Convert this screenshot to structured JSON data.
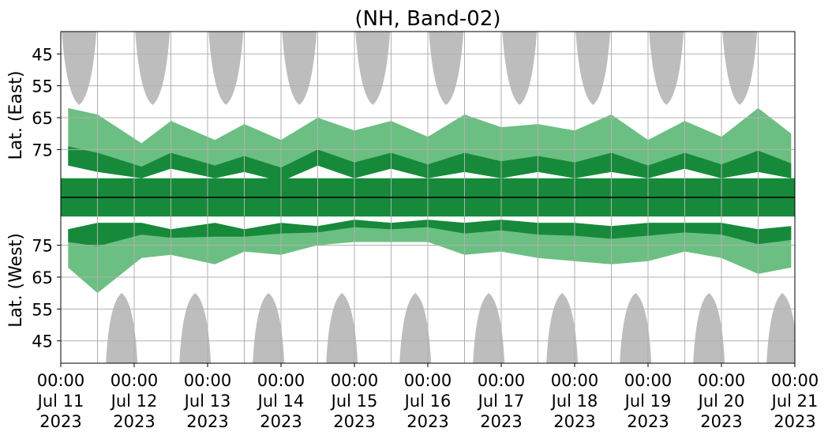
{
  "chart_data": {
    "type": "heatmap",
    "title": "(NH, Band-02)",
    "xlabel": "",
    "ylabel_top": "Lat. (East)",
    "ylabel_bottom": "Lat. (West)",
    "x_ticks": [
      {
        "line1": "00:00",
        "line2": "Jul 11",
        "line3": "2023"
      },
      {
        "line1": "00:00",
        "line2": "Jul 12",
        "line3": "2023"
      },
      {
        "line1": "00:00",
        "line2": "Jul 13",
        "line3": "2023"
      },
      {
        "line1": "00:00",
        "line2": "Jul 14",
        "line3": "2023"
      },
      {
        "line1": "00:00",
        "line2": "Jul 15",
        "line3": "2023"
      },
      {
        "line1": "00:00",
        "line2": "Jul 16",
        "line3": "2023"
      },
      {
        "line1": "00:00",
        "line2": "Jul 17",
        "line3": "2023"
      },
      {
        "line1": "00:00",
        "line2": "Jul 18",
        "line3": "2023"
      },
      {
        "line1": "00:00",
        "line2": "Jul 19",
        "line3": "2023"
      },
      {
        "line1": "00:00",
        "line2": "Jul 20",
        "line3": "2023"
      },
      {
        "line1": "00:00",
        "line2": "Jul 21",
        "line3": "2023"
      }
    ],
    "x_range": [
      "2023-07-11T00:00",
      "2023-07-21T00:00"
    ],
    "y_ticks_east": [
      "45",
      "55",
      "65",
      "75"
    ],
    "y_ticks_west": [
      "75",
      "65",
      "55",
      "45"
    ],
    "lat_range": [
      38,
      90
    ],
    "grid": true,
    "colors": {
      "dense": "#168a3a",
      "sparse": "#5cb874",
      "nodata": "#bdbdbd",
      "grid": "#b0b0b0",
      "center_line": "#000000"
    },
    "nodata_east_days": [
      0.25,
      1.25,
      2.25,
      3.25,
      4.25,
      5.25,
      6.25,
      7.25,
      8.25,
      9.25
    ],
    "nodata_west_days": [
      0.83,
      1.83,
      2.83,
      3.83,
      4.83,
      5.83,
      6.83,
      7.83,
      8.83,
      9.83
    ],
    "activity_east": [
      {
        "day": 0.1,
        "min_lat": 80,
        "max_lat": 62
      },
      {
        "day": 0.5,
        "min_lat": 82,
        "max_lat": 64
      },
      {
        "day": 1.1,
        "min_lat": 84,
        "max_lat": 73
      },
      {
        "day": 1.5,
        "min_lat": 81,
        "max_lat": 66
      },
      {
        "day": 2.1,
        "min_lat": 84,
        "max_lat": 72
      },
      {
        "day": 2.5,
        "min_lat": 82,
        "max_lat": 67
      },
      {
        "day": 3.0,
        "min_lat": 85,
        "max_lat": 72
      },
      {
        "day": 3.5,
        "min_lat": 80,
        "max_lat": 65
      },
      {
        "day": 4.0,
        "min_lat": 84,
        "max_lat": 69
      },
      {
        "day": 4.5,
        "min_lat": 81,
        "max_lat": 66
      },
      {
        "day": 5.0,
        "min_lat": 84,
        "max_lat": 71
      },
      {
        "day": 5.5,
        "min_lat": 82,
        "max_lat": 64
      },
      {
        "day": 6.0,
        "min_lat": 84,
        "max_lat": 68
      },
      {
        "day": 6.5,
        "min_lat": 82,
        "max_lat": 67
      },
      {
        "day": 7.0,
        "min_lat": 84,
        "max_lat": 69
      },
      {
        "day": 7.5,
        "min_lat": 82,
        "max_lat": 64
      },
      {
        "day": 8.0,
        "min_lat": 84,
        "max_lat": 72
      },
      {
        "day": 8.5,
        "min_lat": 81,
        "max_lat": 66
      },
      {
        "day": 9.0,
        "min_lat": 84,
        "max_lat": 71
      },
      {
        "day": 9.5,
        "min_lat": 82,
        "max_lat": 62
      },
      {
        "day": 9.95,
        "min_lat": 84,
        "max_lat": 70
      }
    ],
    "activity_west": [
      {
        "day": 0.1,
        "min_lat": 80,
        "max_lat": 68
      },
      {
        "day": 0.5,
        "min_lat": 82,
        "max_lat": 60
      },
      {
        "day": 1.1,
        "min_lat": 82,
        "max_lat": 71
      },
      {
        "day": 1.5,
        "min_lat": 80,
        "max_lat": 72
      },
      {
        "day": 2.1,
        "min_lat": 82,
        "max_lat": 69
      },
      {
        "day": 2.5,
        "min_lat": 80,
        "max_lat": 73
      },
      {
        "day": 3.0,
        "min_lat": 82,
        "max_lat": 72
      },
      {
        "day": 3.5,
        "min_lat": 81,
        "max_lat": 75
      },
      {
        "day": 4.0,
        "min_lat": 83,
        "max_lat": 76
      },
      {
        "day": 4.5,
        "min_lat": 82,
        "max_lat": 76
      },
      {
        "day": 5.0,
        "min_lat": 83,
        "max_lat": 76
      },
      {
        "day": 5.5,
        "min_lat": 82,
        "max_lat": 72
      },
      {
        "day": 6.0,
        "min_lat": 83,
        "max_lat": 73
      },
      {
        "day": 6.5,
        "min_lat": 82,
        "max_lat": 71
      },
      {
        "day": 7.0,
        "min_lat": 82,
        "max_lat": 70
      },
      {
        "day": 7.5,
        "min_lat": 81,
        "max_lat": 69
      },
      {
        "day": 8.0,
        "min_lat": 82,
        "max_lat": 70
      },
      {
        "day": 8.5,
        "min_lat": 82,
        "max_lat": 73
      },
      {
        "day": 9.0,
        "min_lat": 82,
        "max_lat": 71
      },
      {
        "day": 9.5,
        "min_lat": 80,
        "max_lat": 66
      },
      {
        "day": 9.95,
        "min_lat": 81,
        "max_lat": 68
      }
    ]
  }
}
